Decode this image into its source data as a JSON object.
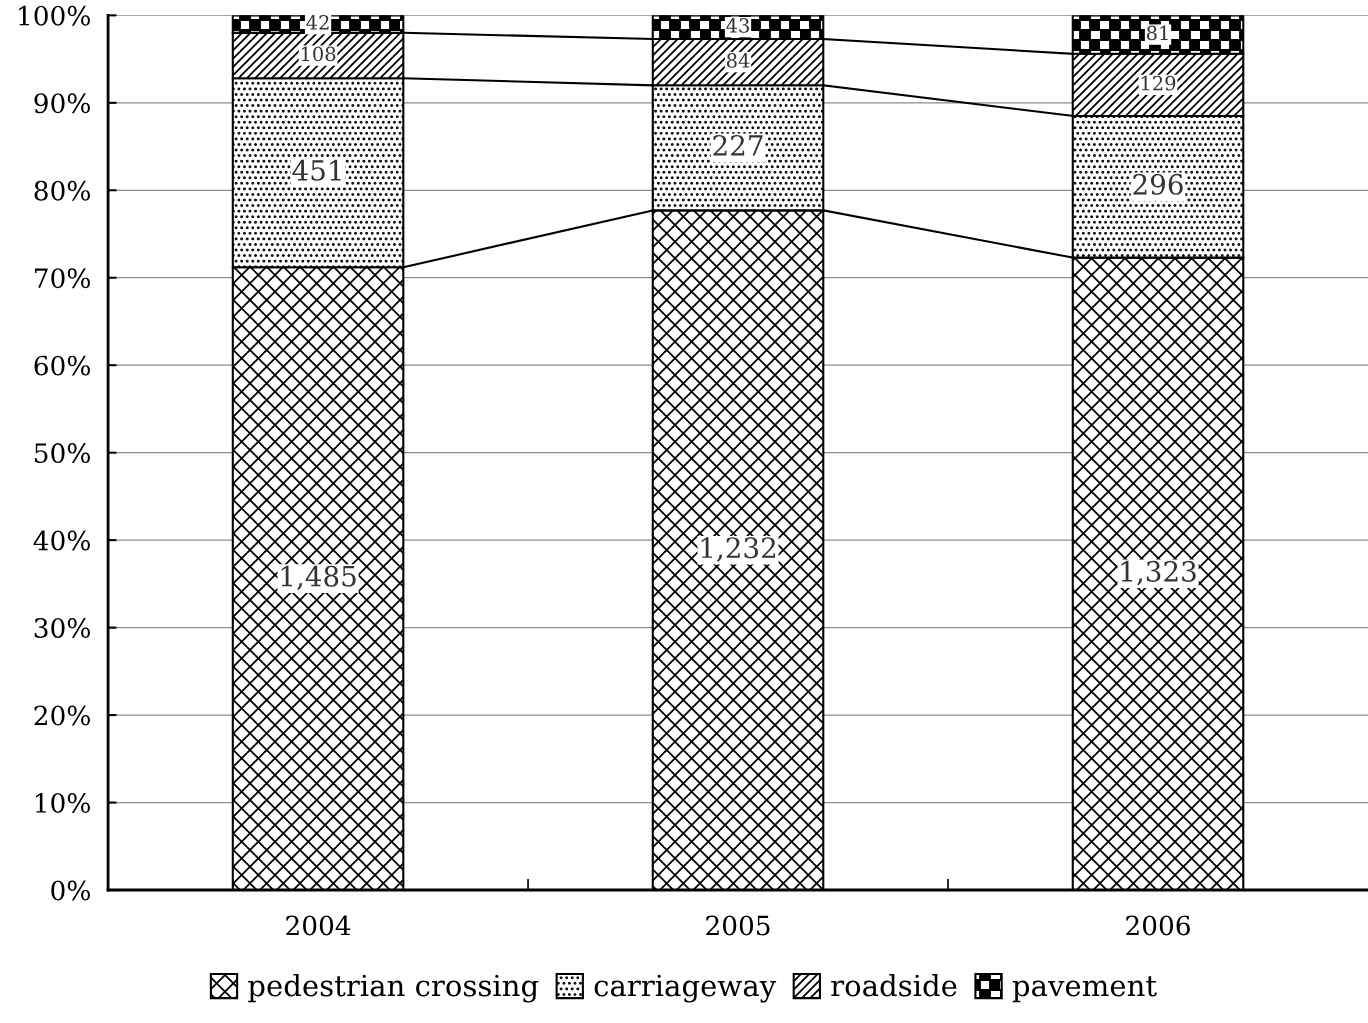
{
  "chart_data": {
    "type": "bar",
    "stacked": true,
    "categories": [
      "2004",
      "2005",
      "2006"
    ],
    "series": [
      {
        "name": "pedestrian crossing",
        "color": "#000000",
        "values": [
          71.2,
          77.7,
          72.3
        ]
      },
      {
        "name": "carriageway",
        "color": "#000000",
        "values": [
          21.6,
          14.3,
          16.2
        ]
      },
      {
        "name": "roadside",
        "color": "#000000",
        "values": [
          5.2,
          5.3,
          7.1
        ]
      },
      {
        "name": "pavement",
        "color": "#000000",
        "values": [
          2.0,
          2.7,
          4.4
        ]
      }
    ],
    "annotations": [
      "1,485",
      "1,232",
      "1,323",
      "451",
      "227",
      "296",
      "108",
      "84",
      "129",
      "42",
      "43",
      "81"
    ],
    "ylim": [
      0,
      100
    ],
    "yticks": [
      {
        "value": 0,
        "label": "0%"
      },
      {
        "value": 10,
        "label": "10%"
      },
      {
        "value": 20,
        "label": "20%"
      },
      {
        "value": 30,
        "label": "30%"
      },
      {
        "value": 40,
        "label": "40%"
      },
      {
        "value": 50,
        "label": "50%"
      },
      {
        "value": 60,
        "label": "60%"
      },
      {
        "value": 70,
        "label": "70%"
      },
      {
        "value": 80,
        "label": "80%"
      },
      {
        "value": 90,
        "label": "90%"
      },
      {
        "value": 100,
        "label": "100%"
      }
    ],
    "grid": "y",
    "legend": "bottom"
  }
}
